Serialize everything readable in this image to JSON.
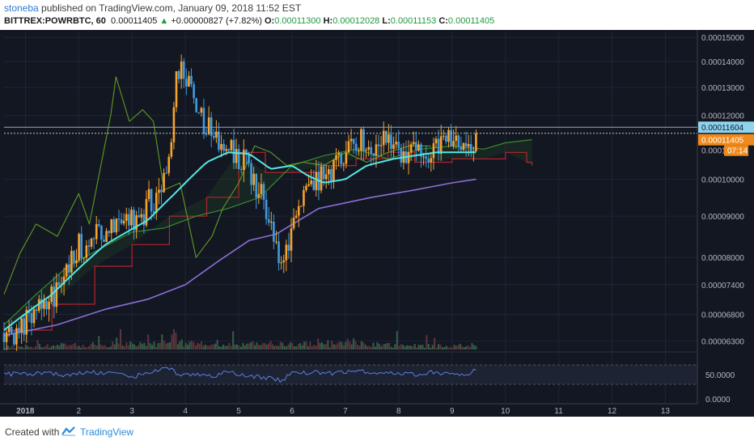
{
  "header": {
    "author": "stoneba",
    "published_text": "published on TradingView.com, January 09, 2018 11:52 EST",
    "symbol": "BITTREX:POWRBTC, 60",
    "last": "0.00011405",
    "change": "+0.00000827 (+7.82%)",
    "open_label": "O:",
    "open": "0.00011300",
    "high_label": "H:",
    "high": "0.00012028",
    "low_label": "L:",
    "low": "0.00011153",
    "close_label": "C:",
    "close": "0.00011405"
  },
  "chart_data": {
    "type": "candlestick",
    "symbol": "BITTREX:POWRBTC, 60",
    "y_ticks": [
      "0.00015000",
      "0.00014000",
      "0.00013000",
      "0.00012000",
      "0.00010000",
      "0.00009000",
      "0.00008000",
      "0.00007400",
      "0.00006800",
      "0.00006300"
    ],
    "y_tick_values": [
      0.00015,
      0.00014,
      0.00013,
      0.00012,
      0.0001,
      9e-05,
      8e-05,
      7.4e-05,
      6.8e-05,
      6.3e-05
    ],
    "ylim": [
      6.15e-05,
      0.0001525
    ],
    "x_ticks": [
      "2018",
      "2",
      "3",
      "4",
      "5",
      "6",
      "7",
      "8",
      "9",
      "10",
      "11",
      "12",
      "13"
    ],
    "x_tick_days": [
      1,
      2,
      3,
      4,
      5,
      6,
      7,
      8,
      9,
      10,
      11,
      12,
      13
    ],
    "xlim_days": [
      0.6,
      13.6
    ],
    "price_labels": {
      "level": "0.00011604",
      "last": "0.00011405",
      "countdown": "07:14",
      "partial": "0.0001"
    },
    "price_label_values": {
      "level": 0.00011604,
      "last": 0.00011405
    },
    "rsi": {
      "ticks": [
        "50.0000",
        "0.0000"
      ],
      "tick_values": [
        50,
        0
      ],
      "ylim": [
        -10,
        90
      ],
      "band": [
        30,
        70
      ]
    },
    "colors": {
      "up": "#f7a32c",
      "down": "#3f9be0",
      "ma_fast": "#55e6e4",
      "ma_slow": "#8b6fd6",
      "base_line": "#b1262d",
      "cloud_line": "#3a8a2e",
      "lagging": "#5e9a25",
      "rsi": "#5b7fe0"
    },
    "trend_anchors": [
      [
        0.6,
        6.45e-05
      ],
      [
        1.0,
        6.6e-05
      ],
      [
        1.5,
        7.2e-05
      ],
      [
        2.0,
        8.15e-05
      ],
      [
        2.5,
        8.8e-05
      ],
      [
        3.0,
        8.95e-05
      ],
      [
        3.5,
        9.6e-05
      ],
      [
        3.7,
        0.000108
      ],
      [
        3.85,
        0.000138
      ],
      [
        4.0,
        0.000132
      ],
      [
        4.3,
        0.00012
      ],
      [
        4.6,
        0.000113
      ],
      [
        4.9,
        0.000108
      ],
      [
        5.2,
        0.000102
      ],
      [
        5.5,
        9.3e-05
      ],
      [
        5.75,
        8e-05
      ],
      [
        5.9,
        8.2e-05
      ],
      [
        6.1,
        9.3e-05
      ],
      [
        6.4,
        0.0001
      ],
      [
        6.8,
        0.000104
      ],
      [
        7.1,
        0.000112
      ],
      [
        7.4,
        0.000109
      ],
      [
        7.7,
        0.000112
      ],
      [
        8.0,
        0.000109
      ],
      [
        8.3,
        0.000107
      ],
      [
        8.6,
        0.000109
      ],
      [
        8.85,
        0.000113
      ],
      [
        9.1,
        0.000109
      ],
      [
        9.3,
        0.000108
      ],
      [
        9.45,
        0.000114
      ]
    ],
    "ma_fast_anchors": [
      [
        0.6,
        6.5e-05
      ],
      [
        1.5,
        7.2e-05
      ],
      [
        2.5,
        8.3e-05
      ],
      [
        3.3,
        8.9e-05
      ],
      [
        3.8,
        9.6e-05
      ],
      [
        4.4,
        0.000105
      ],
      [
        4.8,
        0.000108
      ],
      [
        5.2,
        0.0001075
      ],
      [
        5.6,
        0.000103
      ],
      [
        6.0,
        0.000104
      ],
      [
        6.3,
        0.000101
      ],
      [
        6.6,
        9.9e-05
      ],
      [
        7.0,
        0.0001
      ],
      [
        7.4,
        0.000104
      ],
      [
        7.9,
        0.000106
      ],
      [
        8.3,
        0.000107
      ],
      [
        8.7,
        0.000108
      ],
      [
        9.0,
        0.000108
      ],
      [
        9.45,
        0.000108
      ]
    ],
    "ma_slow_anchors": [
      [
        0.6,
        6.4e-05
      ],
      [
        1.6,
        6.6e-05
      ],
      [
        2.5,
        6.9e-05
      ],
      [
        3.3,
        7.1e-05
      ],
      [
        4.0,
        7.4e-05
      ],
      [
        4.6,
        7.9e-05
      ],
      [
        5.2,
        8.4e-05
      ],
      [
        5.7,
        8.55e-05
      ],
      [
        6.5,
        9.2e-05
      ],
      [
        7.5,
        9.5e-05
      ],
      [
        8.3,
        9.7e-05
      ],
      [
        9.0,
        9.9e-05
      ],
      [
        9.45,
        0.0001
      ]
    ],
    "base_anchors": [
      [
        0.6,
        6.5e-05
      ],
      [
        1.5,
        7e-05
      ],
      [
        2.3,
        7.8e-05
      ],
      [
        3.0,
        8.3e-05
      ],
      [
        3.7,
        9e-05
      ],
      [
        4.4,
        9.5e-05
      ],
      [
        5.0,
        0.000108
      ],
      [
        5.5,
        0.000102
      ],
      [
        6.0,
        0.000102
      ],
      [
        6.6,
        0.000104
      ],
      [
        7.2,
        0.000106
      ],
      [
        7.8,
        0.000108
      ],
      [
        8.3,
        0.000105
      ],
      [
        9.0,
        0.000106
      ],
      [
        9.6,
        0.000106
      ],
      [
        10.0,
        0.000108
      ],
      [
        10.4,
        0.000105
      ],
      [
        10.5,
        0.000104
      ]
    ],
    "cloud_anchors": [
      [
        0.6,
        6.6e-05
      ],
      [
        1.2,
        7.2e-05
      ],
      [
        1.8,
        7.8e-05
      ],
      [
        2.4,
        8.2e-05
      ],
      [
        3.0,
        8.6e-05
      ],
      [
        3.6,
        8.7e-05
      ],
      [
        4.2,
        9e-05
      ],
      [
        4.8,
        9.2e-05
      ],
      [
        5.4,
        9.5e-05
      ],
      [
        6.0,
        0.000104
      ],
      [
        6.6,
        0.000107
      ],
      [
        7.2,
        0.000109
      ],
      [
        7.8,
        0.000106
      ],
      [
        8.4,
        0.000109
      ],
      [
        9.0,
        0.00011
      ],
      [
        9.6,
        0.000109
      ],
      [
        10.0,
        0.000111
      ],
      [
        10.5,
        0.000112
      ]
    ],
    "lagging_anchors": [
      [
        0.6,
        7.2e-05
      ],
      [
        0.9,
        8.1e-05
      ],
      [
        1.2,
        8.8e-05
      ],
      [
        1.6,
        8.5e-05
      ],
      [
        2.0,
        9.6e-05
      ],
      [
        2.2,
        8.8e-05
      ],
      [
        2.6,
        0.00012
      ],
      [
        2.7,
        0.000134
      ],
      [
        2.95,
        0.000118
      ],
      [
        3.2,
        0.000122
      ],
      [
        3.4,
        0.000118
      ],
      [
        3.6,
        9.7e-05
      ],
      [
        3.9,
        9.9e-05
      ],
      [
        4.2,
        8e-05
      ],
      [
        4.5,
        8.5e-05
      ],
      [
        4.7,
        9.2e-05
      ],
      [
        5.0,
        9.9e-05
      ],
      [
        5.3,
        0.00011
      ],
      [
        5.6,
        0.000108
      ],
      [
        5.9,
        0.000104
      ],
      [
        6.2,
        0.000105
      ],
      [
        6.6,
        0.000104
      ],
      [
        7.0,
        0.000108
      ],
      [
        7.4,
        0.000105
      ],
      [
        7.8,
        0.000108
      ],
      [
        8.2,
        0.00011
      ],
      [
        8.6,
        0.00011
      ]
    ],
    "rsi_anchors": [
      [
        0.6,
        52
      ],
      [
        1.0,
        50
      ],
      [
        1.4,
        55
      ],
      [
        1.8,
        47
      ],
      [
        2.2,
        56
      ],
      [
        2.6,
        52
      ],
      [
        3.0,
        45
      ],
      [
        3.4,
        58
      ],
      [
        3.7,
        62
      ],
      [
        3.9,
        48
      ],
      [
        4.2,
        52
      ],
      [
        4.5,
        47
      ],
      [
        4.8,
        55
      ],
      [
        5.1,
        48
      ],
      [
        5.5,
        44
      ],
      [
        5.8,
        38
      ],
      [
        6.0,
        53
      ],
      [
        6.4,
        55
      ],
      [
        6.8,
        52
      ],
      [
        7.2,
        58
      ],
      [
        7.6,
        54
      ],
      [
        8.0,
        52
      ],
      [
        8.3,
        50
      ],
      [
        8.6,
        55
      ],
      [
        8.9,
        52
      ],
      [
        9.2,
        50
      ],
      [
        9.45,
        58
      ]
    ],
    "volume_anchors": [
      [
        0.6,
        3
      ],
      [
        1.5,
        5
      ],
      [
        2.5,
        6
      ],
      [
        3.5,
        7
      ],
      [
        4.0,
        9
      ],
      [
        4.5,
        5
      ],
      [
        5.5,
        7
      ],
      [
        6.0,
        6
      ],
      [
        7.0,
        8
      ],
      [
        8.0,
        5
      ],
      [
        9.0,
        4
      ],
      [
        9.45,
        6
      ]
    ],
    "seed": 42
  },
  "footer": {
    "created": "Created with",
    "brand": "TradingView"
  }
}
